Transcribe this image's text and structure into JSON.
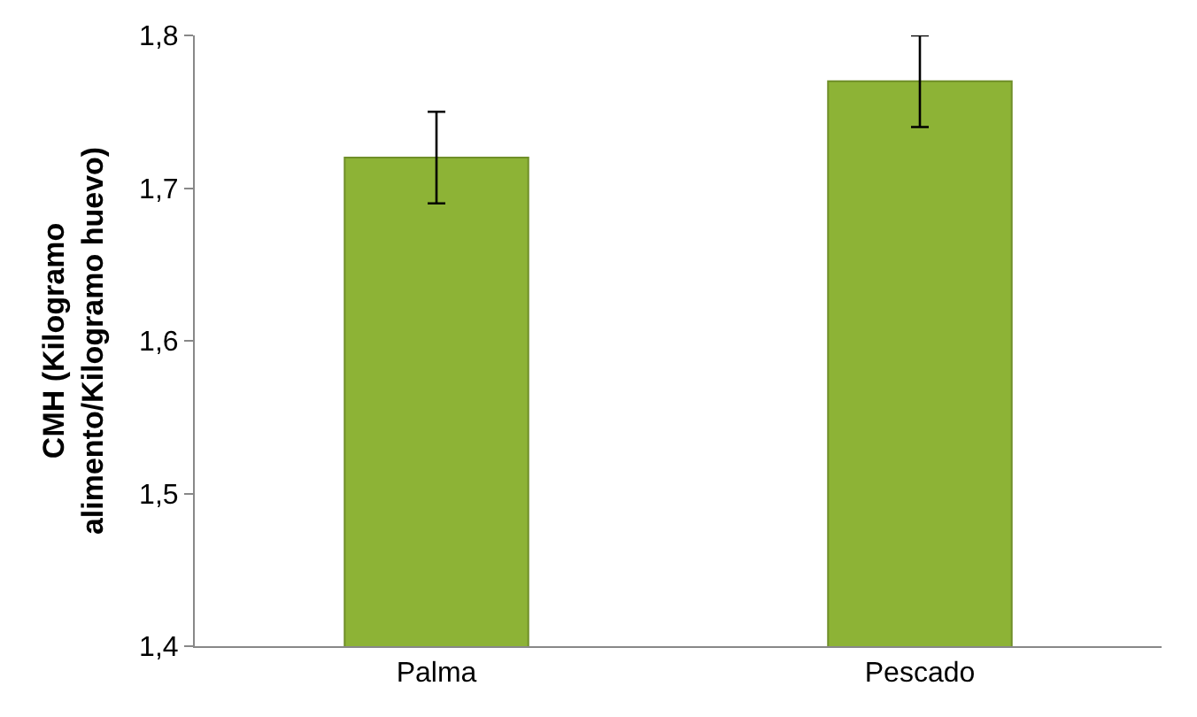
{
  "chart_data": {
    "type": "bar",
    "ylabel": "CMH (Kilogramo\nalimento/Kilogramo huevo)",
    "categories": [
      "Palma",
      "Pescado"
    ],
    "values": [
      1.72,
      1.77
    ],
    "errors": [
      0.03,
      0.03
    ],
    "color": "#8db336",
    "ylim": [
      1.4,
      1.8
    ],
    "yticks": [
      {
        "value": 1.4,
        "label": "1,4"
      },
      {
        "value": 1.5,
        "label": "1,5"
      },
      {
        "value": 1.6,
        "label": "1,6"
      },
      {
        "value": 1.7,
        "label": "1,7"
      },
      {
        "value": 1.8,
        "label": "1,8"
      }
    ]
  }
}
